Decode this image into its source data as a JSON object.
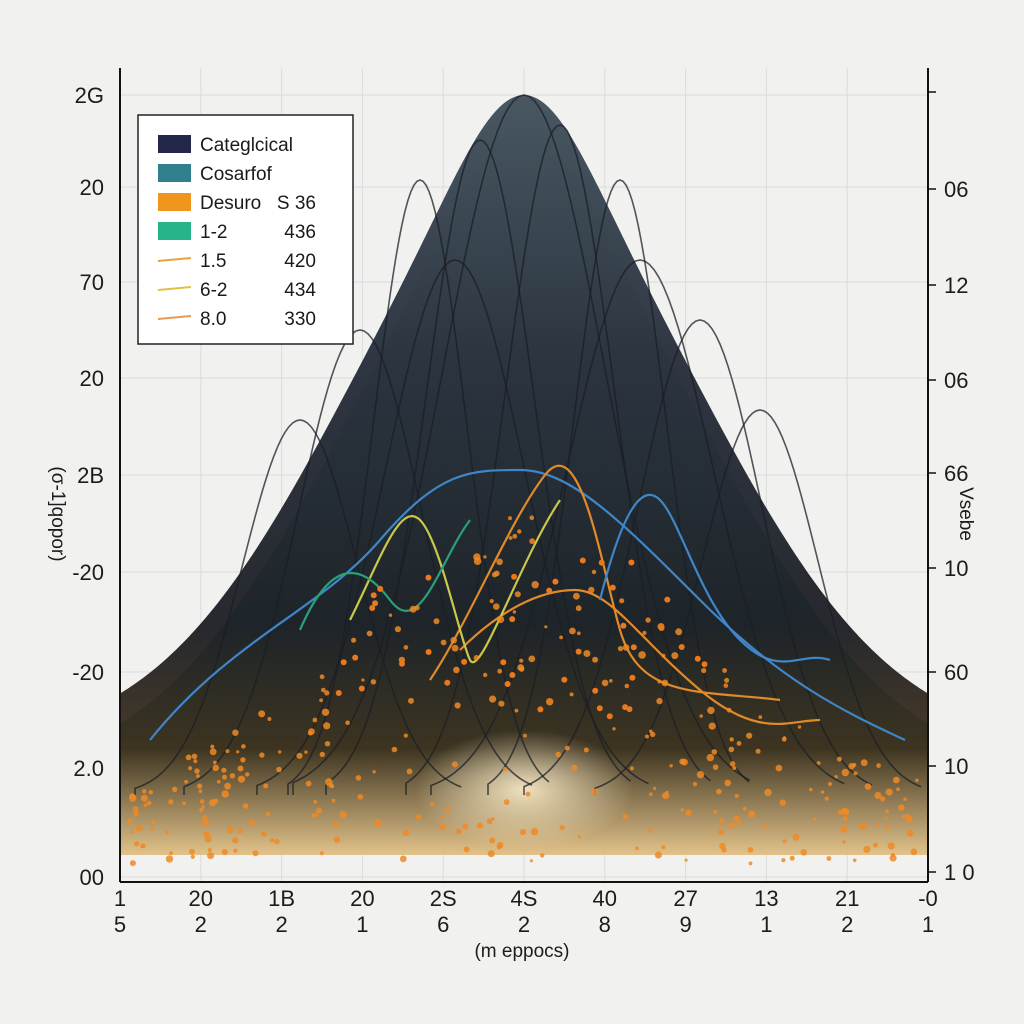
{
  "chart_data": {
    "type": "area",
    "x": [
      0,
      1,
      2,
      3,
      4,
      5,
      6,
      7,
      8
    ],
    "x_tick_labels": [
      {
        "top": "1",
        "bottom": "5"
      },
      {
        "top": "20",
        "bottom": "2"
      },
      {
        "top": "1B",
        "bottom": "2"
      },
      {
        "top": "20",
        "bottom": "1"
      },
      {
        "top": "2S",
        "bottom": "6"
      },
      {
        "top": "4S",
        "bottom": "2"
      },
      {
        "top": "40",
        "bottom": "8"
      },
      {
        "top": "27",
        "bottom": "9"
      },
      {
        "top": "13",
        "bottom": "1"
      },
      {
        "top": "21",
        "bottom": "2"
      },
      {
        "top": "-0",
        "bottom": "1"
      }
    ],
    "y_left_tick_labels": [
      "2G",
      "20",
      "70",
      "20",
      "2B",
      "-20",
      "-20",
      "2.0",
      "00"
    ],
    "y_right_tick_labels": [
      "",
      "06",
      "12",
      "06",
      "66",
      "10",
      "60",
      "10",
      "1 0"
    ],
    "xlabel": "(m eppocs)",
    "ylabel": "(σ-1]qopor)",
    "ylabel_right": "Vsebe",
    "grid": true,
    "legend_position": "top-left",
    "legend": [
      {
        "label": "Categlcical",
        "value": "",
        "color": "#23284a",
        "marker": "box"
      },
      {
        "label": "Cosarfof",
        "value": "",
        "color": "#2f7f8c",
        "marker": "box"
      },
      {
        "label": "Desuro",
        "value": "S 36",
        "color": "#f0961e",
        "marker": "box"
      },
      {
        "label": "1-2",
        "value": "436",
        "color": "#27b48a",
        "marker": "box"
      },
      {
        "label": "1.5",
        "value": "420",
        "color": "#e9a23a",
        "marker": "line"
      },
      {
        "label": "6-2",
        "value": "434",
        "color": "#e0c04a",
        "marker": "line"
      },
      {
        "label": "8.0",
        "value": "330",
        "color": "#e89a55",
        "marker": "line"
      }
    ],
    "series": [
      {
        "name": "Categlcical",
        "values": [
          0.12,
          0.27,
          0.52,
          0.81,
          0.98,
          0.81,
          0.52,
          0.27,
          0.12
        ]
      },
      {
        "name": "Cosarfof",
        "values": [
          0.1,
          0.24,
          0.45,
          0.62,
          0.55,
          0.62,
          0.45,
          0.24,
          0.1
        ]
      },
      {
        "name": "Desuro",
        "values": [
          0.06,
          0.12,
          0.18,
          0.28,
          0.4,
          0.28,
          0.18,
          0.12,
          0.06
        ]
      }
    ],
    "colors": {
      "dark_fill": "#1b1f2b",
      "teal_fill": "#2e8a7c",
      "orange_points": "#f08a24",
      "grid": "#dcdcdc",
      "background": "#f1f1ef"
    }
  }
}
